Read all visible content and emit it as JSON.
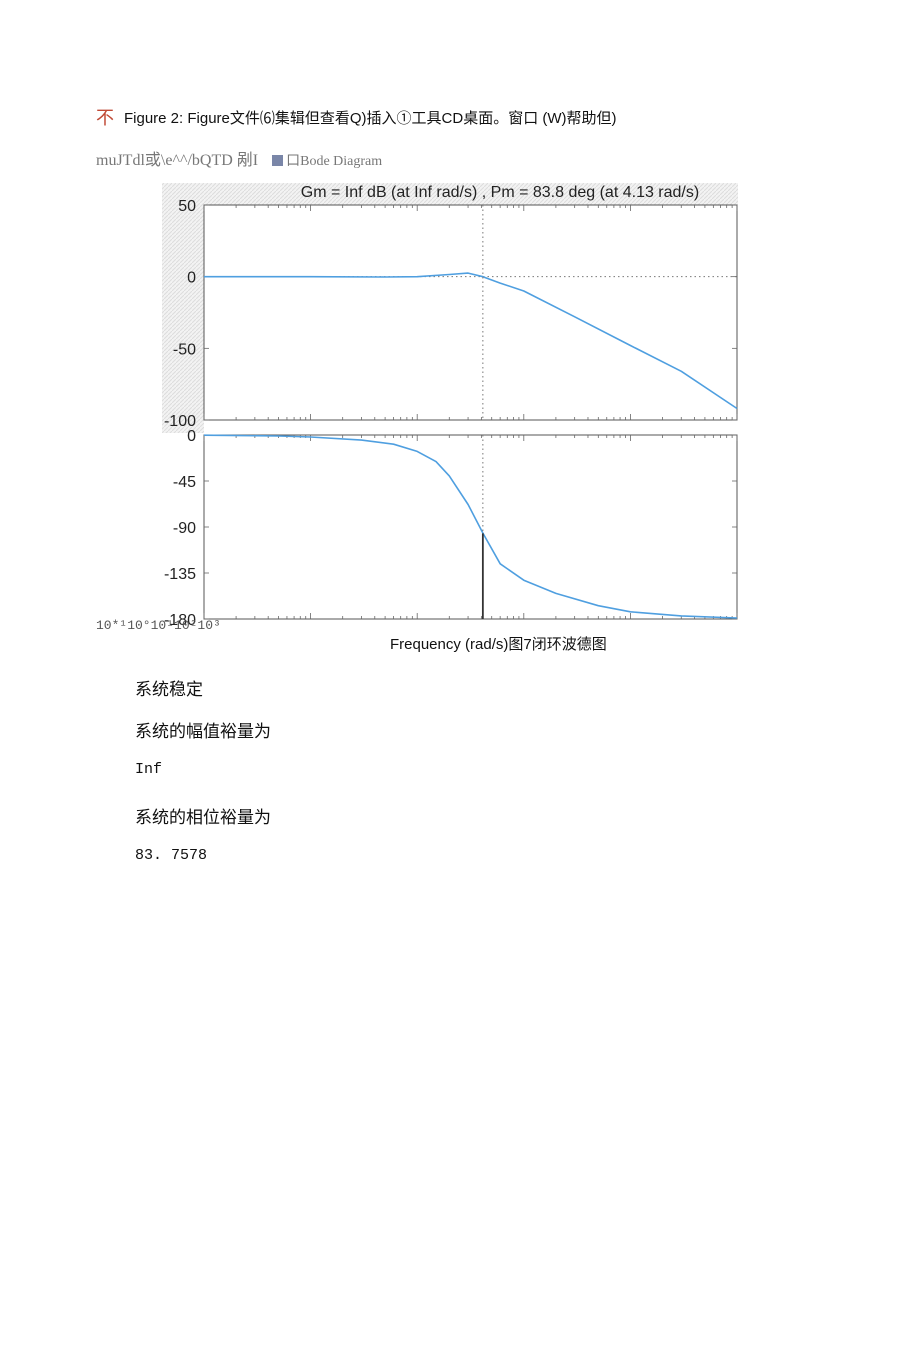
{
  "header": {
    "marker": "不",
    "text": "Figure 2: Figure文件⑹集辑但查看Q)插入①工具CD桌面。窗口 (W)帮助但)"
  },
  "toolbar_line": {
    "left_text": "muJTdl或\\e^^/bQTD 剐I",
    "right_text": "口Bode Diagram"
  },
  "chart_data": [
    {
      "type": "line",
      "title": "Gm = Inf dB (at Inf rad/s) ,  Pm = 83.8 deg (at 4.13 rad/s)",
      "ylabel": "",
      "xlabel": "",
      "xscale": "log",
      "xlim": [
        0.01,
        1000
      ],
      "ylim": [
        -100,
        50
      ],
      "yticks": [
        50,
        0,
        -50,
        -100
      ],
      "reference_line_y": 0,
      "crossover_x": 4.13,
      "series": [
        {
          "color": "#4f9fe0",
          "x": [
            0.01,
            0.1,
            0.5,
            1,
            2,
            3,
            4.13,
            6,
            10,
            30,
            100,
            300,
            1000
          ],
          "values": [
            0,
            0,
            -0.2,
            0,
            1.5,
            2.5,
            0,
            -4.5,
            -10,
            -28,
            -48,
            -66,
            -92
          ]
        }
      ]
    },
    {
      "type": "line",
      "xlabel": "Frequency (rad/s)",
      "ylabel": "",
      "xscale": "log",
      "xlim": [
        0.01,
        1000
      ],
      "ylim": [
        -180,
        0
      ],
      "yticks": [
        0,
        -45,
        -90,
        -135,
        -180
      ],
      "crossover_x": 4.13,
      "phase_at_crossover": -96.2,
      "series": [
        {
          "color": "#4f9fe0",
          "x": [
            0.01,
            0.05,
            0.1,
            0.3,
            0.6,
            1,
            1.5,
            2,
            3,
            4.13,
            6,
            10,
            20,
            50,
            100,
            300,
            1000
          ],
          "values": [
            -0.2,
            -1,
            -2,
            -5,
            -9,
            -16,
            -26,
            -40,
            -68,
            -96,
            -126,
            -142,
            -155,
            -167,
            -173,
            -177,
            -179
          ]
        }
      ]
    }
  ],
  "axis_bottom_garbled": "10*¹10°10¹10²10³",
  "caption_suffix": "图7闭环波德图",
  "lines": {
    "stable": "系统稳定",
    "gain_margin_label": "系统的幅值裕量为",
    "gain_margin_value": "Inf",
    "phase_margin_label": "系统的相位裕量为",
    "phase_margin_value": "83. 7578"
  }
}
